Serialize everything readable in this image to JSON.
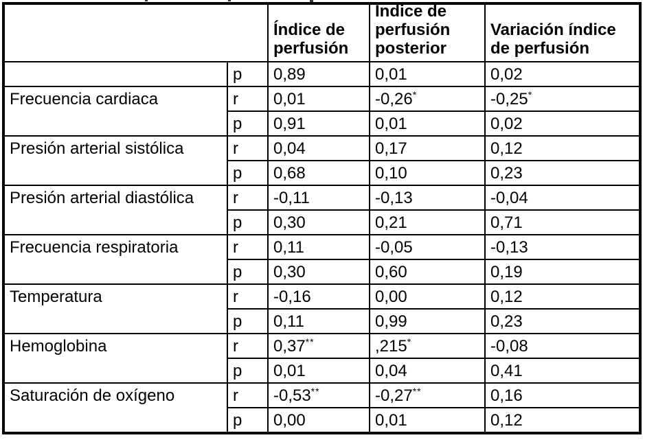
{
  "colors": {
    "border": "#000000",
    "text": "#000000",
    "background": "#ffffff"
  },
  "table": {
    "col_headers": [
      "",
      "Índice de\nperfusión",
      "Índice de\nperfusión\nposterior",
      "Variación índice\nde perfusión"
    ],
    "stat_column_symbols": [
      "r",
      "p"
    ],
    "groups": [
      {
        "label": "",
        "rows": [
          {
            "stat": "p",
            "values": [
              {
                "v": "0,89"
              },
              {
                "v": "0,01"
              },
              {
                "v": "0,02"
              }
            ]
          }
        ]
      },
      {
        "label": "Frecuencia cardiaca",
        "rows": [
          {
            "stat": "r",
            "values": [
              {
                "v": "0,01"
              },
              {
                "v": "-0,26",
                "sup": "*"
              },
              {
                "v": "-0,25",
                "sup": "*"
              }
            ]
          },
          {
            "stat": "p",
            "values": [
              {
                "v": "0,91"
              },
              {
                "v": "0,01"
              },
              {
                "v": "0,02"
              }
            ]
          }
        ]
      },
      {
        "label": "Presión arterial sistólica",
        "rows": [
          {
            "stat": "r",
            "values": [
              {
                "v": "0,04"
              },
              {
                "v": "0,17"
              },
              {
                "v": "0,12"
              }
            ]
          },
          {
            "stat": "p",
            "values": [
              {
                "v": "0,68"
              },
              {
                "v": "0,10"
              },
              {
                "v": "0,23"
              }
            ]
          }
        ]
      },
      {
        "label": "Presión arterial diastólica",
        "rows": [
          {
            "stat": "r",
            "values": [
              {
                "v": "-0,11"
              },
              {
                "v": "-0,13"
              },
              {
                "v": "-0,04"
              }
            ]
          },
          {
            "stat": "p",
            "values": [
              {
                "v": "0,30"
              },
              {
                "v": "0,21"
              },
              {
                "v": "0,71"
              }
            ]
          }
        ]
      },
      {
        "label": "Frecuencia respiratoria",
        "rows": [
          {
            "stat": "r",
            "values": [
              {
                "v": "0,11"
              },
              {
                "v": "-0,05"
              },
              {
                "v": "-0,13"
              }
            ]
          },
          {
            "stat": "p",
            "values": [
              {
                "v": "0,30"
              },
              {
                "v": "0,60"
              },
              {
                "v": "0,19"
              }
            ]
          }
        ]
      },
      {
        "label": "Temperatura",
        "rows": [
          {
            "stat": "r",
            "values": [
              {
                "v": "-0,16"
              },
              {
                "v": "0,00"
              },
              {
                "v": "0,12"
              }
            ]
          },
          {
            "stat": "p",
            "values": [
              {
                "v": "0,11"
              },
              {
                "v": "0,99"
              },
              {
                "v": "0,23"
              }
            ]
          }
        ]
      },
      {
        "label": "Hemoglobina",
        "rows": [
          {
            "stat": "r",
            "values": [
              {
                "v": "0,37",
                "sup": "**"
              },
              {
                "v": ",215",
                "sup": "*"
              },
              {
                "v": "-0,08"
              }
            ]
          },
          {
            "stat": "p",
            "values": [
              {
                "v": "0,01"
              },
              {
                "v": "0,04"
              },
              {
                "v": "0,41"
              }
            ]
          }
        ]
      },
      {
        "label": "Saturación de oxígeno",
        "rows": [
          {
            "stat": "r",
            "values": [
              {
                "v": "-0,53",
                "sup": "**"
              },
              {
                "v": "-0,27",
                "sup": "**"
              },
              {
                "v": "0,16"
              }
            ]
          },
          {
            "stat": "p",
            "values": [
              {
                "v": "0,00"
              },
              {
                "v": "0,01"
              },
              {
                "v": "0,12"
              }
            ]
          }
        ]
      }
    ]
  }
}
